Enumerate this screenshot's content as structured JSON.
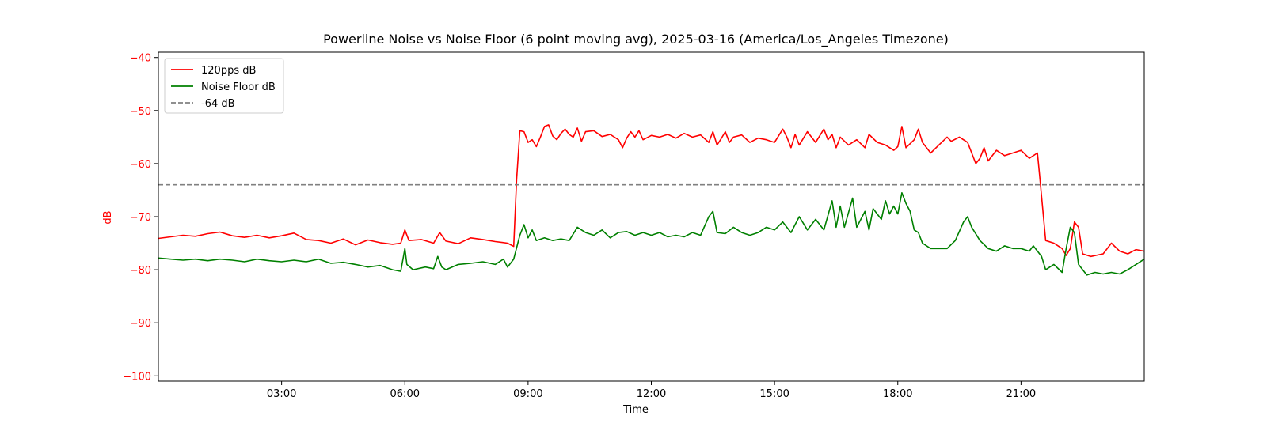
{
  "chart_data": {
    "type": "line",
    "title": "Powerline Noise vs Noise Floor (6 point moving avg), 2025-03-16 (America/Los_Angeles Timezone)",
    "xlabel": "Time",
    "ylabel": "dB",
    "x_unit": "hours",
    "xlim": [
      0,
      24
    ],
    "ylim": [
      -101,
      -39
    ],
    "x_ticks": [
      {
        "value": 3,
        "label": "03:00"
      },
      {
        "value": 6,
        "label": "06:00"
      },
      {
        "value": 9,
        "label": "09:00"
      },
      {
        "value": 12,
        "label": "12:00"
      },
      {
        "value": 15,
        "label": "15:00"
      },
      {
        "value": 18,
        "label": "18:00"
      },
      {
        "value": 21,
        "label": "21:00"
      }
    ],
    "y_ticks": [
      -40,
      -50,
      -60,
      -70,
      -80,
      -90,
      -100
    ],
    "y_tick_labels": [
      "−40",
      "−50",
      "−60",
      "−70",
      "−80",
      "−90",
      "−100"
    ],
    "y_tick_color": "#ff0000",
    "grid": false,
    "legend": "upper left",
    "series": [
      {
        "name": "120pps dB",
        "color": "#ff0000",
        "style": "solid",
        "points": [
          [
            0.0,
            -74.1
          ],
          [
            0.3,
            -73.8
          ],
          [
            0.6,
            -73.5
          ],
          [
            0.9,
            -73.7
          ],
          [
            1.2,
            -73.2
          ],
          [
            1.5,
            -72.9
          ],
          [
            1.8,
            -73.6
          ],
          [
            2.1,
            -73.9
          ],
          [
            2.4,
            -73.5
          ],
          [
            2.7,
            -74.0
          ],
          [
            3.0,
            -73.6
          ],
          [
            3.3,
            -73.1
          ],
          [
            3.6,
            -74.3
          ],
          [
            3.9,
            -74.5
          ],
          [
            4.2,
            -75.0
          ],
          [
            4.5,
            -74.2
          ],
          [
            4.8,
            -75.3
          ],
          [
            5.1,
            -74.4
          ],
          [
            5.4,
            -74.9
          ],
          [
            5.7,
            -75.2
          ],
          [
            5.9,
            -75.0
          ],
          [
            6.0,
            -72.5
          ],
          [
            6.1,
            -74.5
          ],
          [
            6.4,
            -74.3
          ],
          [
            6.7,
            -75.0
          ],
          [
            6.85,
            -73.0
          ],
          [
            7.0,
            -74.6
          ],
          [
            7.3,
            -75.1
          ],
          [
            7.6,
            -74.0
          ],
          [
            7.9,
            -74.3
          ],
          [
            8.2,
            -74.7
          ],
          [
            8.5,
            -75.0
          ],
          [
            8.65,
            -75.6
          ],
          [
            8.72,
            -63.0
          ],
          [
            8.8,
            -53.8
          ],
          [
            8.9,
            -54.0
          ],
          [
            9.0,
            -56.0
          ],
          [
            9.1,
            -55.5
          ],
          [
            9.2,
            -56.8
          ],
          [
            9.3,
            -55.0
          ],
          [
            9.4,
            -53.0
          ],
          [
            9.5,
            -52.7
          ],
          [
            9.6,
            -54.8
          ],
          [
            9.7,
            -55.5
          ],
          [
            9.8,
            -54.3
          ],
          [
            9.9,
            -53.5
          ],
          [
            10.0,
            -54.5
          ],
          [
            10.1,
            -55.0
          ],
          [
            10.2,
            -53.3
          ],
          [
            10.3,
            -55.8
          ],
          [
            10.4,
            -54.0
          ],
          [
            10.6,
            -53.8
          ],
          [
            10.8,
            -54.9
          ],
          [
            11.0,
            -54.5
          ],
          [
            11.2,
            -55.5
          ],
          [
            11.3,
            -57.0
          ],
          [
            11.4,
            -55.2
          ],
          [
            11.5,
            -54.0
          ],
          [
            11.6,
            -55.0
          ],
          [
            11.7,
            -53.8
          ],
          [
            11.8,
            -55.5
          ],
          [
            12.0,
            -54.7
          ],
          [
            12.2,
            -55.0
          ],
          [
            12.4,
            -54.5
          ],
          [
            12.6,
            -55.2
          ],
          [
            12.8,
            -54.3
          ],
          [
            13.0,
            -55.0
          ],
          [
            13.2,
            -54.6
          ],
          [
            13.4,
            -56.0
          ],
          [
            13.5,
            -54.0
          ],
          [
            13.6,
            -56.5
          ],
          [
            13.7,
            -55.3
          ],
          [
            13.8,
            -54.0
          ],
          [
            13.9,
            -56.0
          ],
          [
            14.0,
            -55.0
          ],
          [
            14.2,
            -54.6
          ],
          [
            14.4,
            -56.0
          ],
          [
            14.6,
            -55.2
          ],
          [
            14.8,
            -55.5
          ],
          [
            15.0,
            -56.0
          ],
          [
            15.2,
            -53.5
          ],
          [
            15.3,
            -55.0
          ],
          [
            15.4,
            -57.0
          ],
          [
            15.5,
            -54.5
          ],
          [
            15.6,
            -56.5
          ],
          [
            15.8,
            -54.0
          ],
          [
            16.0,
            -56.0
          ],
          [
            16.2,
            -53.5
          ],
          [
            16.3,
            -55.5
          ],
          [
            16.4,
            -54.5
          ],
          [
            16.5,
            -57.0
          ],
          [
            16.6,
            -55.0
          ],
          [
            16.8,
            -56.5
          ],
          [
            17.0,
            -55.5
          ],
          [
            17.2,
            -57.0
          ],
          [
            17.3,
            -54.5
          ],
          [
            17.5,
            -56.0
          ],
          [
            17.7,
            -56.5
          ],
          [
            17.9,
            -57.5
          ],
          [
            18.0,
            -56.8
          ],
          [
            18.1,
            -53.0
          ],
          [
            18.2,
            -57.0
          ],
          [
            18.4,
            -55.5
          ],
          [
            18.5,
            -53.5
          ],
          [
            18.6,
            -56.0
          ],
          [
            18.8,
            -58.0
          ],
          [
            19.0,
            -56.5
          ],
          [
            19.2,
            -55.0
          ],
          [
            19.3,
            -55.8
          ],
          [
            19.5,
            -55.0
          ],
          [
            19.7,
            -56.0
          ],
          [
            19.8,
            -58.0
          ],
          [
            19.9,
            -60.0
          ],
          [
            20.0,
            -59.0
          ],
          [
            20.1,
            -57.0
          ],
          [
            20.2,
            -59.5
          ],
          [
            20.4,
            -57.5
          ],
          [
            20.6,
            -58.5
          ],
          [
            20.8,
            -58.0
          ],
          [
            21.0,
            -57.5
          ],
          [
            21.2,
            -59.0
          ],
          [
            21.4,
            -58.0
          ],
          [
            21.45,
            -62.0
          ],
          [
            21.6,
            -74.5
          ],
          [
            21.8,
            -75.0
          ],
          [
            22.0,
            -76.0
          ],
          [
            22.1,
            -77.3
          ],
          [
            22.2,
            -76.0
          ],
          [
            22.3,
            -71.0
          ],
          [
            22.4,
            -72.0
          ],
          [
            22.5,
            -77.0
          ],
          [
            22.7,
            -77.5
          ],
          [
            23.0,
            -77.0
          ],
          [
            23.2,
            -75.0
          ],
          [
            23.4,
            -76.5
          ],
          [
            23.6,
            -77.0
          ],
          [
            23.8,
            -76.2
          ],
          [
            24.0,
            -76.5
          ]
        ]
      },
      {
        "name": "Noise Floor dB",
        "color": "#008000",
        "style": "solid",
        "points": [
          [
            0.0,
            -77.8
          ],
          [
            0.3,
            -78.0
          ],
          [
            0.6,
            -78.2
          ],
          [
            0.9,
            -78.0
          ],
          [
            1.2,
            -78.3
          ],
          [
            1.5,
            -78.0
          ],
          [
            1.8,
            -78.2
          ],
          [
            2.1,
            -78.5
          ],
          [
            2.4,
            -78.0
          ],
          [
            2.7,
            -78.3
          ],
          [
            3.0,
            -78.5
          ],
          [
            3.3,
            -78.2
          ],
          [
            3.6,
            -78.5
          ],
          [
            3.9,
            -78.0
          ],
          [
            4.2,
            -78.8
          ],
          [
            4.5,
            -78.6
          ],
          [
            4.8,
            -79.0
          ],
          [
            5.1,
            -79.5
          ],
          [
            5.4,
            -79.2
          ],
          [
            5.7,
            -80.0
          ],
          [
            5.9,
            -80.3
          ],
          [
            6.0,
            -76.0
          ],
          [
            6.05,
            -79.0
          ],
          [
            6.2,
            -80.0
          ],
          [
            6.5,
            -79.5
          ],
          [
            6.7,
            -79.8
          ],
          [
            6.8,
            -77.5
          ],
          [
            6.9,
            -79.5
          ],
          [
            7.0,
            -80.0
          ],
          [
            7.3,
            -79.0
          ],
          [
            7.6,
            -78.8
          ],
          [
            7.9,
            -78.5
          ],
          [
            8.2,
            -79.0
          ],
          [
            8.4,
            -78.0
          ],
          [
            8.5,
            -79.5
          ],
          [
            8.65,
            -78.0
          ],
          [
            8.75,
            -75.0
          ],
          [
            8.8,
            -73.5
          ],
          [
            8.9,
            -71.5
          ],
          [
            9.0,
            -74.0
          ],
          [
            9.1,
            -72.5
          ],
          [
            9.2,
            -74.5
          ],
          [
            9.4,
            -74.0
          ],
          [
            9.6,
            -74.5
          ],
          [
            9.8,
            -74.2
          ],
          [
            10.0,
            -74.5
          ],
          [
            10.2,
            -72.0
          ],
          [
            10.4,
            -73.0
          ],
          [
            10.6,
            -73.5
          ],
          [
            10.8,
            -72.5
          ],
          [
            11.0,
            -74.0
          ],
          [
            11.2,
            -73.0
          ],
          [
            11.4,
            -72.8
          ],
          [
            11.6,
            -73.5
          ],
          [
            11.8,
            -73.0
          ],
          [
            12.0,
            -73.5
          ],
          [
            12.2,
            -73.0
          ],
          [
            12.4,
            -73.8
          ],
          [
            12.6,
            -73.5
          ],
          [
            12.8,
            -73.8
          ],
          [
            13.0,
            -73.0
          ],
          [
            13.2,
            -73.5
          ],
          [
            13.4,
            -70.0
          ],
          [
            13.5,
            -69.0
          ],
          [
            13.6,
            -73.0
          ],
          [
            13.8,
            -73.2
          ],
          [
            14.0,
            -72.0
          ],
          [
            14.2,
            -73.0
          ],
          [
            14.4,
            -73.5
          ],
          [
            14.6,
            -73.0
          ],
          [
            14.8,
            -72.0
          ],
          [
            15.0,
            -72.5
          ],
          [
            15.2,
            -71.0
          ],
          [
            15.4,
            -73.0
          ],
          [
            15.6,
            -70.0
          ],
          [
            15.8,
            -72.5
          ],
          [
            16.0,
            -70.5
          ],
          [
            16.2,
            -72.5
          ],
          [
            16.4,
            -67.0
          ],
          [
            16.5,
            -72.0
          ],
          [
            16.6,
            -68.0
          ],
          [
            16.7,
            -72.0
          ],
          [
            16.9,
            -66.5
          ],
          [
            17.0,
            -72.0
          ],
          [
            17.2,
            -69.0
          ],
          [
            17.3,
            -72.5
          ],
          [
            17.4,
            -68.5
          ],
          [
            17.6,
            -70.5
          ],
          [
            17.7,
            -67.0
          ],
          [
            17.8,
            -69.5
          ],
          [
            17.9,
            -68.0
          ],
          [
            18.0,
            -69.5
          ],
          [
            18.1,
            -65.5
          ],
          [
            18.2,
            -67.5
          ],
          [
            18.3,
            -69.0
          ],
          [
            18.4,
            -72.5
          ],
          [
            18.5,
            -73.0
          ],
          [
            18.6,
            -75.0
          ],
          [
            18.8,
            -76.0
          ],
          [
            19.0,
            -76.0
          ],
          [
            19.2,
            -76.0
          ],
          [
            19.4,
            -74.5
          ],
          [
            19.6,
            -71.0
          ],
          [
            19.7,
            -70.0
          ],
          [
            19.8,
            -72.0
          ],
          [
            20.0,
            -74.5
          ],
          [
            20.2,
            -76.0
          ],
          [
            20.4,
            -76.5
          ],
          [
            20.6,
            -75.5
          ],
          [
            20.8,
            -76.0
          ],
          [
            21.0,
            -76.0
          ],
          [
            21.2,
            -76.5
          ],
          [
            21.3,
            -75.5
          ],
          [
            21.5,
            -77.5
          ],
          [
            21.6,
            -80.0
          ],
          [
            21.8,
            -79.0
          ],
          [
            22.0,
            -80.5
          ],
          [
            22.1,
            -76.0
          ],
          [
            22.2,
            -72.0
          ],
          [
            22.3,
            -73.0
          ],
          [
            22.4,
            -79.0
          ],
          [
            22.6,
            -81.0
          ],
          [
            22.8,
            -80.5
          ],
          [
            23.0,
            -80.8
          ],
          [
            23.2,
            -80.5
          ],
          [
            23.4,
            -80.8
          ],
          [
            23.6,
            -80.0
          ],
          [
            23.8,
            -79.0
          ],
          [
            24.0,
            -78.0
          ]
        ]
      },
      {
        "name": "-64 dB",
        "color": "#808080",
        "style": "dashed",
        "points": [
          [
            0.0,
            -64.0
          ],
          [
            24.0,
            -64.0
          ]
        ]
      }
    ]
  }
}
